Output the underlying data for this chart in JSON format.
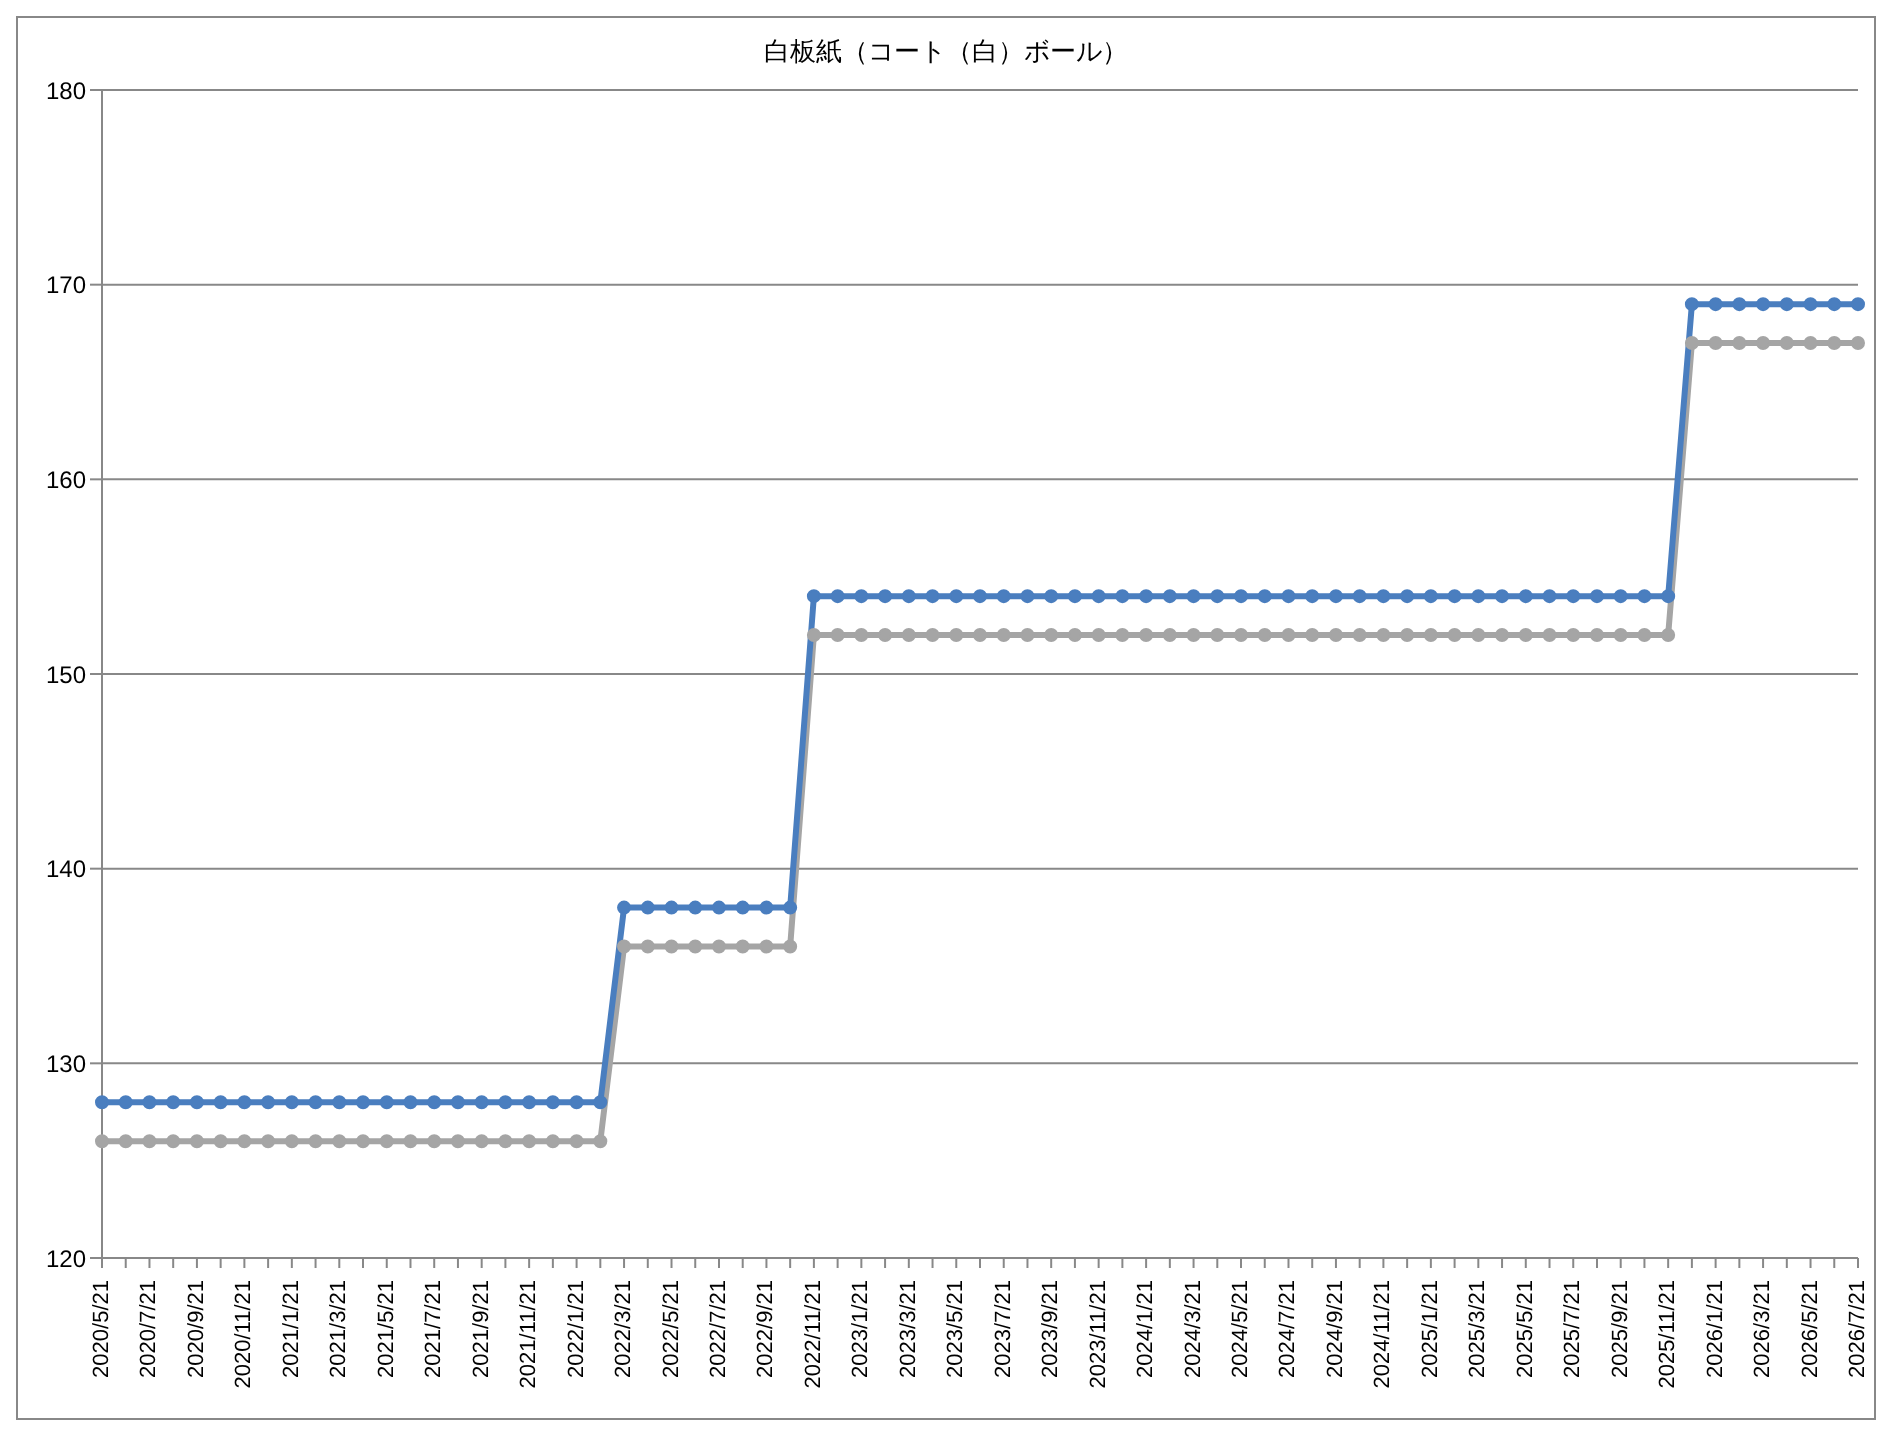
{
  "chart_data": {
    "type": "line",
    "title": "白板紙（コート（白）ボール）",
    "categories": [
      "2020/5/21",
      null,
      "2020/7/21",
      null,
      "2020/9/21",
      null,
      "2020/11/21",
      null,
      "2021/1/21",
      null,
      "2021/3/21",
      null,
      "2021/5/21",
      null,
      "2021/7/21",
      null,
      "2021/9/21",
      null,
      "2021/11/21",
      null,
      "2022/1/21",
      null,
      "2022/3/21",
      null,
      "2022/5/21",
      null,
      "2022/7/21",
      null,
      "2022/9/21",
      null,
      "2022/11/21",
      null,
      "2023/1/21",
      null,
      "2023/3/21",
      null,
      "2023/5/21",
      null,
      "2023/7/21",
      null,
      "2023/9/21",
      null,
      "2023/11/21",
      null,
      "2024/1/21",
      null,
      "2024/3/21",
      null,
      "2024/5/21",
      null,
      "2024/7/21",
      null,
      "2024/9/21",
      null,
      "2024/11/21",
      null,
      "2025/1/21",
      null,
      "2025/3/21",
      null,
      "2025/5/21",
      null,
      "2025/7/21",
      null,
      "2025/9/21",
      null,
      "2025/11/21",
      null,
      "2026/1/21",
      null,
      "2026/3/21",
      null,
      "2026/5/21",
      null,
      "2026/7/21"
    ],
    "series": [
      {
        "color": "#a5a5a5",
        "values": [
          126,
          126,
          126,
          126,
          126,
          126,
          126,
          126,
          126,
          126,
          126,
          126,
          126,
          126,
          126,
          126,
          126,
          126,
          126,
          126,
          126,
          126,
          136,
          136,
          136,
          136,
          136,
          136,
          136,
          136,
          152,
          152,
          152,
          152,
          152,
          152,
          152,
          152,
          152,
          152,
          152,
          152,
          152,
          152,
          152,
          152,
          152,
          152,
          152,
          152,
          152,
          152,
          152,
          152,
          152,
          152,
          152,
          152,
          152,
          152,
          152,
          152,
          152,
          152,
          152,
          152,
          152,
          167,
          167,
          167,
          167,
          167,
          167,
          167,
          167
        ]
      },
      {
        "color": "#4a7ebf",
        "values": [
          128,
          128,
          128,
          128,
          128,
          128,
          128,
          128,
          128,
          128,
          128,
          128,
          128,
          128,
          128,
          128,
          128,
          128,
          128,
          128,
          128,
          128,
          138,
          138,
          138,
          138,
          138,
          138,
          138,
          138,
          154,
          154,
          154,
          154,
          154,
          154,
          154,
          154,
          154,
          154,
          154,
          154,
          154,
          154,
          154,
          154,
          154,
          154,
          154,
          154,
          154,
          154,
          154,
          154,
          154,
          154,
          154,
          154,
          154,
          154,
          154,
          154,
          154,
          154,
          154,
          154,
          154,
          169,
          169,
          169,
          169,
          169,
          169,
          169,
          169
        ]
      }
    ],
    "ylim": [
      120,
      180
    ],
    "yticks": [
      120,
      130,
      140,
      150,
      160,
      170,
      180
    ],
    "grid": "y",
    "legend": false,
    "marker": "circle",
    "line_style": "solid"
  }
}
